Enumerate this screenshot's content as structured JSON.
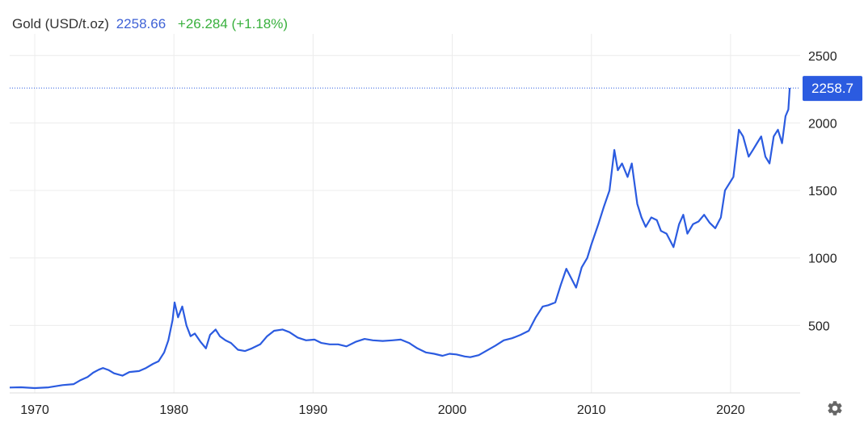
{
  "header": {
    "name": "Gold (USD/t.oz)",
    "price": "2258.66",
    "change": "+26.284 (+1.18%)"
  },
  "colors": {
    "line": "#2b5be0",
    "badge": "#2b5be0",
    "grid": "#ececec",
    "change_positive": "#38b03d"
  },
  "icons": {
    "settings": "gear-icon"
  },
  "chart_data": {
    "type": "line",
    "title": "",
    "xlabel": "",
    "ylabel": "",
    "x_ticks": [
      1970,
      1980,
      1990,
      2000,
      2010,
      2020
    ],
    "y_ticks": [
      500,
      1000,
      1500,
      2000,
      2500
    ],
    "xlim": [
      1968.2,
      2025.0
    ],
    "ylim": [
      0,
      2660
    ],
    "grid": true,
    "y_axis_side": "right",
    "last_value_label": "2258.7",
    "series": [
      {
        "name": "",
        "x": [
          1968.2,
          1969.0,
          1970.0,
          1971.0,
          1972.0,
          1972.8,
          1973.3,
          1973.8,
          1974.2,
          1974.6,
          1974.9,
          1975.3,
          1975.7,
          1976.3,
          1976.8,
          1977.5,
          1978.0,
          1978.5,
          1978.9,
          1979.3,
          1979.6,
          1979.9,
          1980.05,
          1980.3,
          1980.6,
          1980.9,
          1981.2,
          1981.5,
          1981.9,
          1982.3,
          1982.6,
          1983.0,
          1983.3,
          1983.7,
          1984.1,
          1984.6,
          1985.1,
          1985.6,
          1986.2,
          1986.7,
          1987.2,
          1987.8,
          1988.3,
          1988.9,
          1989.5,
          1990.1,
          1990.6,
          1991.2,
          1991.8,
          1992.4,
          1993.1,
          1993.7,
          1994.3,
          1995.0,
          1995.7,
          1996.3,
          1996.9,
          1997.5,
          1998.1,
          1998.7,
          1999.3,
          1999.8,
          2000.3,
          2000.9,
          2001.3,
          2001.9,
          2002.5,
          2003.1,
          2003.7,
          2004.3,
          2004.9,
          2005.5,
          2006.0,
          2006.5,
          2006.9,
          2007.4,
          2007.8,
          2008.2,
          2008.5,
          2008.9,
          2009.3,
          2009.7,
          2010.0,
          2010.5,
          2010.9,
          2011.3,
          2011.65,
          2011.9,
          2012.2,
          2012.6,
          2012.9,
          2013.3,
          2013.6,
          2013.9,
          2014.3,
          2014.7,
          2015.0,
          2015.4,
          2015.9,
          2016.3,
          2016.6,
          2016.9,
          2017.3,
          2017.7,
          2018.1,
          2018.5,
          2018.9,
          2019.3,
          2019.6,
          2019.9,
          2020.2,
          2020.6,
          2020.9,
          2021.3,
          2021.6,
          2021.9,
          2022.2,
          2022.5,
          2022.8,
          2023.1,
          2023.4,
          2023.7,
          2023.95,
          2024.15,
          2024.25
        ],
        "values": [
          40,
          42,
          36,
          41,
          58,
          65,
          95,
          118,
          150,
          172,
          185,
          170,
          145,
          128,
          155,
          162,
          185,
          215,
          235,
          300,
          390,
          540,
          670,
          560,
          640,
          500,
          420,
          440,
          380,
          330,
          430,
          470,
          420,
          390,
          370,
          320,
          310,
          330,
          360,
          420,
          460,
          470,
          450,
          410,
          390,
          395,
          370,
          360,
          360,
          345,
          380,
          400,
          390,
          385,
          390,
          395,
          370,
          330,
          300,
          290,
          275,
          290,
          285,
          270,
          265,
          280,
          315,
          350,
          390,
          405,
          430,
          460,
          560,
          640,
          650,
          670,
          800,
          920,
          860,
          780,
          930,
          1000,
          1100,
          1250,
          1380,
          1500,
          1800,
          1650,
          1700,
          1600,
          1700,
          1400,
          1300,
          1230,
          1300,
          1280,
          1200,
          1180,
          1080,
          1250,
          1320,
          1180,
          1250,
          1270,
          1320,
          1260,
          1220,
          1300,
          1500,
          1550,
          1600,
          1950,
          1900,
          1750,
          1800,
          1850,
          1900,
          1750,
          1700,
          1900,
          1950,
          1850,
          2050,
          2100,
          2258.66
        ]
      }
    ]
  }
}
